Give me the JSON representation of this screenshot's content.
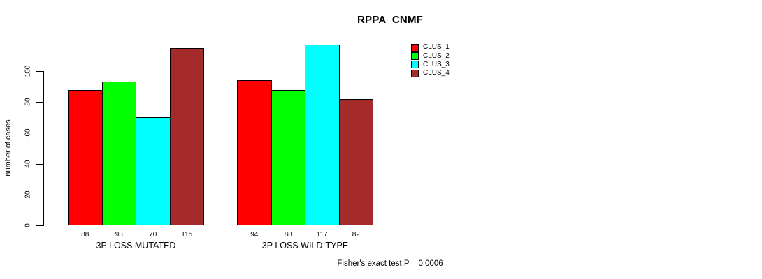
{
  "chart_data": {
    "type": "bar",
    "title": "RPPA_CNMF",
    "ylabel": "number of cases",
    "xlabel": "",
    "categories": [
      "3P LOSS MUTATED",
      "3P LOSS WILD-TYPE"
    ],
    "series": [
      {
        "name": "CLUS_1",
        "color": "#FF0000",
        "values": [
          88,
          94
        ]
      },
      {
        "name": "CLUS_2",
        "color": "#00FF00",
        "values": [
          93,
          88
        ]
      },
      {
        "name": "CLUS_3",
        "color": "#00FFFF",
        "values": [
          70,
          117
        ]
      },
      {
        "name": "CLUS_4",
        "color": "#A52A2A",
        "values": [
          115,
          82
        ]
      }
    ],
    "yticks": [
      0,
      20,
      40,
      60,
      80,
      100
    ],
    "ylim": [
      0,
      120
    ],
    "bar_value_labels": [
      [
        88,
        93,
        70,
        115
      ],
      [
        94,
        88,
        117,
        82
      ]
    ],
    "legend_position": "right",
    "grid": false,
    "axis_color": "#000000",
    "background_color": "#ffffff"
  },
  "caption": "Fisher's exact test P = 0.0006"
}
